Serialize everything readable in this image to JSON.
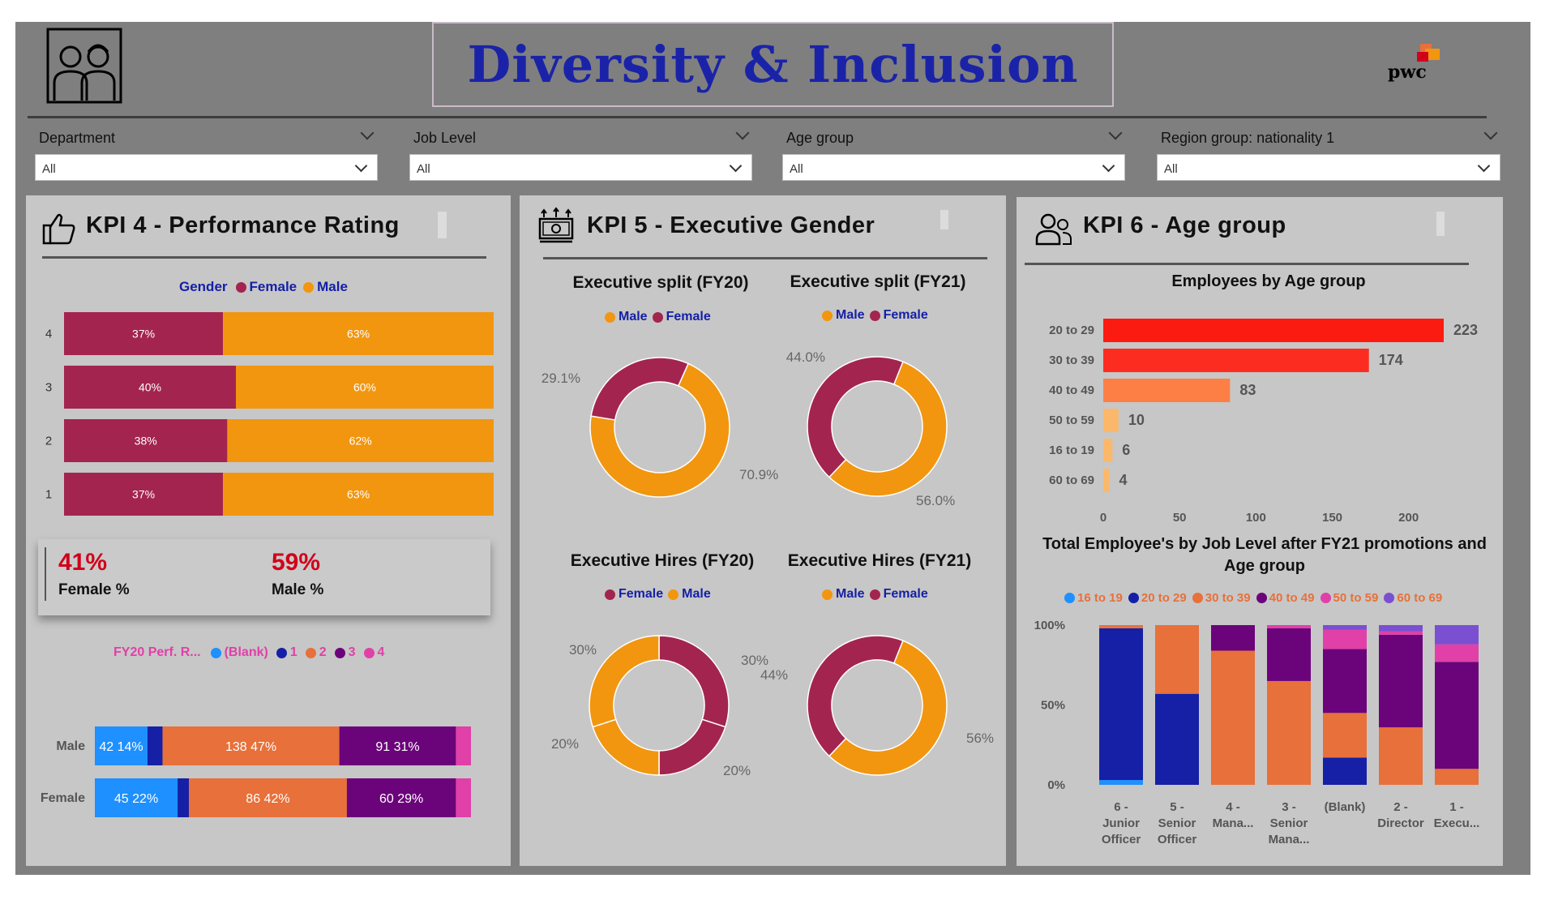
{
  "header": {
    "title": "Diversity & Inclusion",
    "logo_text": "pwc"
  },
  "slicers": [
    {
      "label": "Department",
      "value": "All"
    },
    {
      "label": "Job Level",
      "value": "All"
    },
    {
      "label": "Age group",
      "value": "All"
    },
    {
      "label": "Region group: nationality 1",
      "value": "All"
    }
  ],
  "colors": {
    "female": "#a3254f",
    "male": "#f2960f",
    "dark_blue": "#1520a6",
    "purple": "#6b047a",
    "orange": "#e8703a",
    "light_blue": "#1e90ff",
    "pink": "#e040a8",
    "violet": "#7a4fd1",
    "panel_bg": "#c7c7c7",
    "frame_bg": "#7f7f7f"
  },
  "kpi4": {
    "title": "KPI 4 - Performance Rating",
    "icon": "thumbs-up-icon",
    "female_pct": "41%",
    "female_label": "Female %",
    "male_pct": "59%",
    "male_label": "Male %"
  },
  "kpi5": {
    "title": "KPI 5 - Executive Gender",
    "icon": "money-icon"
  },
  "kpi6": {
    "title": "KPI 6 - Age group",
    "icon": "people-icon"
  },
  "chart_data": [
    {
      "id": "perf_rating_gender",
      "type": "bar",
      "orientation": "horizontal",
      "stacked": "100%",
      "legend_title": "Gender",
      "legend": [
        "Female",
        "Male"
      ],
      "categories": [
        "4",
        "3",
        "2",
        "1"
      ],
      "series": [
        {
          "name": "Female",
          "values": [
            37,
            40,
            38,
            37
          ],
          "labels": [
            "37%",
            "40%",
            "38%",
            "37%"
          ]
        },
        {
          "name": "Male",
          "values": [
            63,
            60,
            62,
            63
          ],
          "labels": [
            "63%",
            "60%",
            "62%",
            "63%"
          ]
        }
      ]
    },
    {
      "id": "fy20_perf_by_gender",
      "type": "bar",
      "orientation": "horizontal",
      "stacked": "100%",
      "legend_title": "FY20 Perf. R...",
      "legend": [
        "(Blank)",
        "1",
        "2",
        "3",
        "4"
      ],
      "categories": [
        "Male",
        "Female"
      ],
      "series": [
        {
          "name": "(Blank)",
          "values": [
            42,
            45
          ],
          "labels": [
            "42 14%",
            "45 22%"
          ],
          "shares": [
            14,
            22
          ]
        },
        {
          "name": "1",
          "values": [
            11,
            7
          ],
          "shares": [
            4,
            3
          ]
        },
        {
          "name": "2",
          "values": [
            138,
            86
          ],
          "labels": [
            "138 47%",
            "86 42%"
          ],
          "shares": [
            47,
            42
          ]
        },
        {
          "name": "3",
          "values": [
            91,
            60
          ],
          "labels": [
            "91 31%",
            "60 29%"
          ],
          "shares": [
            31,
            29
          ]
        },
        {
          "name": "4",
          "values": [
            12,
            8
          ],
          "shares": [
            4,
            4
          ]
        }
      ]
    },
    {
      "id": "exec_split_fy20",
      "type": "pie",
      "donut": true,
      "title": "Executive split (FY20)",
      "legend": [
        "Male",
        "Female"
      ],
      "slices": [
        {
          "name": "Female",
          "value": 29.1,
          "label": "29.1%"
        },
        {
          "name": "Male",
          "value": 70.9,
          "label": "70.9%"
        }
      ]
    },
    {
      "id": "exec_split_fy21",
      "type": "pie",
      "donut": true,
      "title": "Executive split (FY21)",
      "legend": [
        "Male",
        "Female"
      ],
      "slices": [
        {
          "name": "Male",
          "value": 56.0,
          "label": "56.0%"
        },
        {
          "name": "Female",
          "value": 44.0,
          "label": "44.0%"
        }
      ]
    },
    {
      "id": "exec_hires_fy20",
      "type": "pie",
      "donut": true,
      "title": "Executive Hires (FY20)",
      "legend": [
        "Female",
        "Male"
      ],
      "slices": [
        {
          "name": "Female",
          "value": 30,
          "label": "30%"
        },
        {
          "name": "Female",
          "value": 20,
          "label": "20%"
        },
        {
          "name": "Male",
          "value": 30,
          "label": "30%"
        },
        {
          "name": "Male",
          "value": 20,
          "label": "20%"
        }
      ]
    },
    {
      "id": "exec_hires_fy21",
      "type": "pie",
      "donut": true,
      "title": "Executive Hires (FY21)",
      "legend": [
        "Male",
        "Female"
      ],
      "slices": [
        {
          "name": "Male",
          "value": 56,
          "label": "56%"
        },
        {
          "name": "Female",
          "value": 44,
          "label": "44%"
        }
      ]
    },
    {
      "id": "employees_by_age",
      "type": "bar",
      "orientation": "horizontal",
      "title": "Employees by Age group",
      "categories": [
        "20 to 29",
        "30 to 39",
        "40 to 49",
        "50 to 59",
        "16 to 19",
        "60 to 69"
      ],
      "values": [
        223,
        174,
        83,
        10,
        6,
        4
      ],
      "bar_colors": [
        "#fb1b10",
        "#fc2d20",
        "#fd7f45",
        "#fbb86a",
        "#fbb86a",
        "#fbb86a"
      ],
      "x_ticks": [
        "0",
        "50",
        "100",
        "150",
        "200"
      ],
      "xlim": [
        0,
        223
      ]
    },
    {
      "id": "job_level_age",
      "type": "bar",
      "orientation": "vertical",
      "stacked": "100%",
      "title": "Total Employee's by Job Level after FY21 promotions and Age group",
      "legend": [
        "16 to 19",
        "20 to 29",
        "30 to 39",
        "40 to 49",
        "50 to 59",
        "60 to 69"
      ],
      "categories": [
        "6 - Junior Officer",
        "5 - Senior Officer",
        "4 - Mana...",
        "3 - Senior Mana...",
        "(Blank)",
        "2 - Director",
        "1 - Execu..."
      ],
      "y_ticks": [
        "100%",
        "50%",
        "0%"
      ],
      "series": [
        {
          "name": "16 to 19",
          "values": [
            3,
            0,
            0,
            0,
            0,
            0,
            0
          ]
        },
        {
          "name": "20 to 29",
          "values": [
            95,
            57,
            0,
            0,
            17,
            0,
            0
          ]
        },
        {
          "name": "30 to 39",
          "values": [
            2,
            43,
            84,
            65,
            28,
            36,
            10
          ]
        },
        {
          "name": "40 to 49",
          "values": [
            0,
            0,
            16,
            33,
            40,
            58,
            67
          ]
        },
        {
          "name": "50 to 59",
          "values": [
            0,
            0,
            0,
            2,
            12,
            2,
            11
          ]
        },
        {
          "name": "60 to 69",
          "values": [
            0,
            0,
            0,
            0,
            3,
            4,
            12
          ]
        }
      ]
    }
  ]
}
